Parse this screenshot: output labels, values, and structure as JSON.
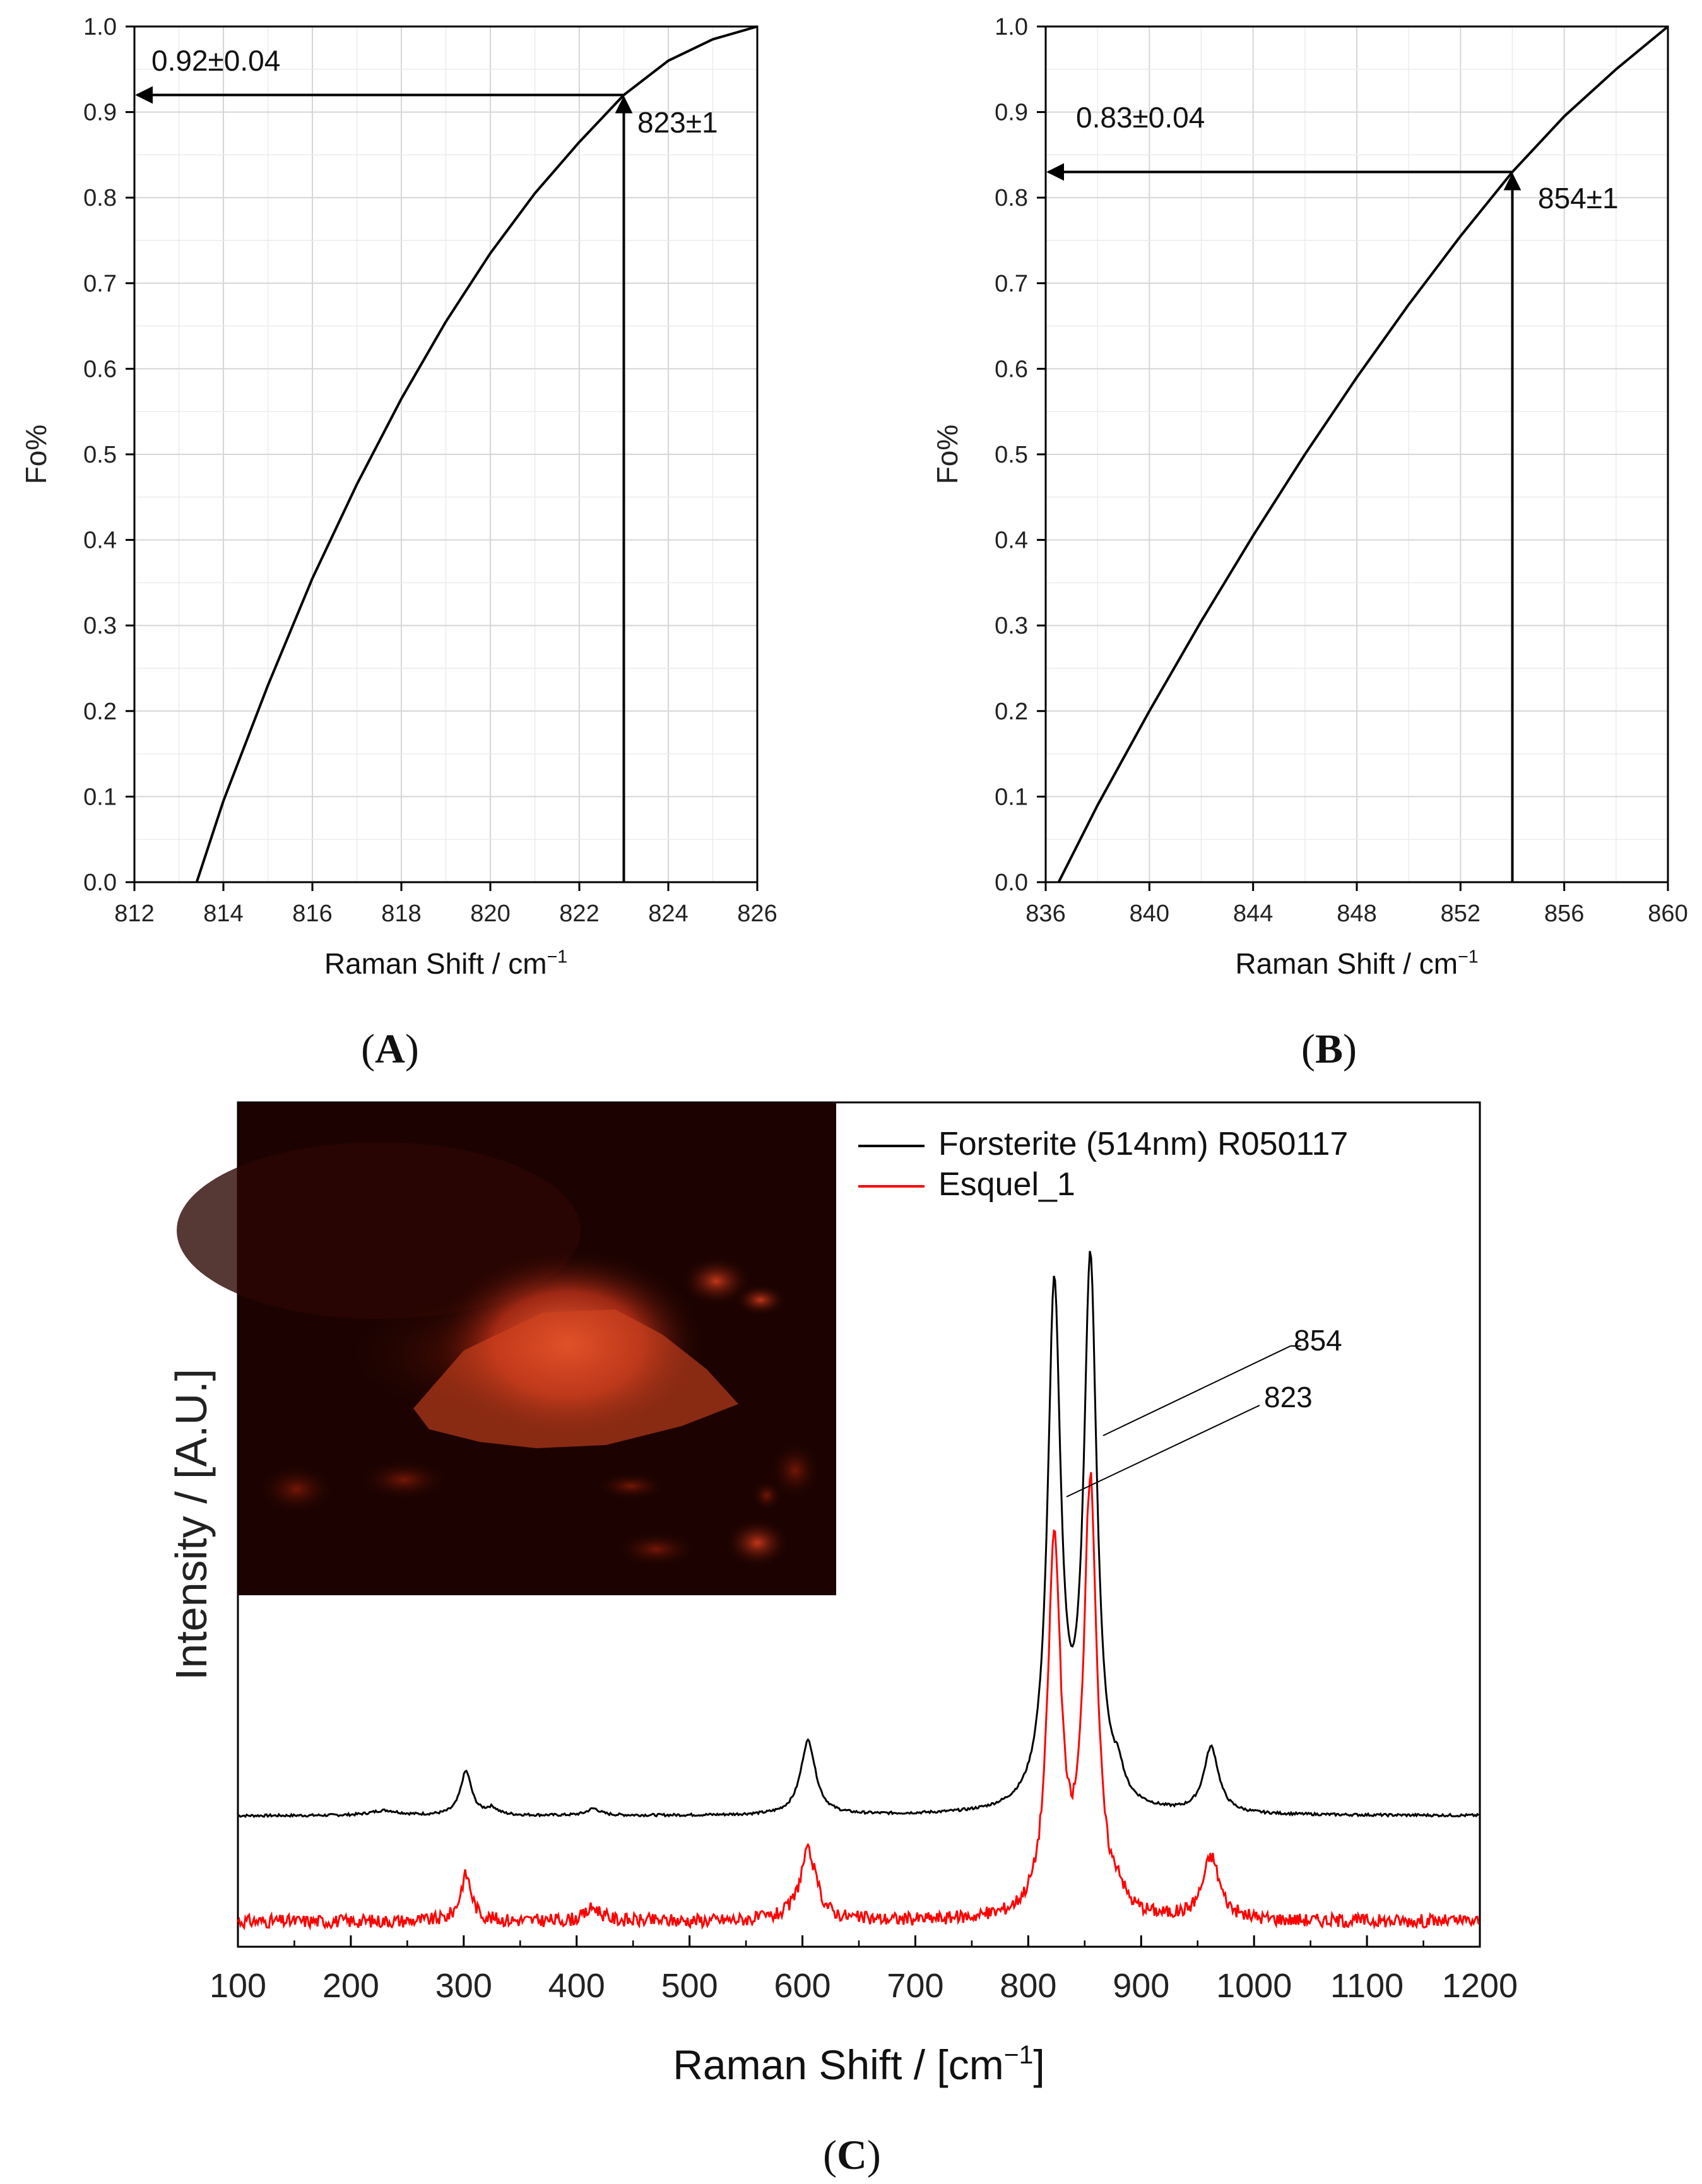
{
  "chart_data": [
    {
      "panel": "A",
      "type": "line",
      "xlabel": "Raman Shift / cm",
      "xlabel_sup": "−1",
      "ylabel": "Fo%",
      "xlim": [
        812,
        826
      ],
      "ylim": [
        0.0,
        1.0
      ],
      "xticks": [
        "812",
        "814",
        "816",
        "818",
        "820",
        "822",
        "824",
        "826"
      ],
      "yticks": [
        "0.0",
        "0.1",
        "0.2",
        "0.3",
        "0.4",
        "0.5",
        "0.6",
        "0.7",
        "0.8",
        "0.9",
        "1.0"
      ],
      "grid": true,
      "series": [
        {
          "x": [
            813.4,
            814,
            815,
            816,
            817,
            818,
            819,
            820,
            821,
            822,
            823,
            824,
            825,
            826
          ],
          "y": [
            0.0,
            0.095,
            0.23,
            0.355,
            0.465,
            0.565,
            0.655,
            0.735,
            0.805,
            0.865,
            0.92,
            0.96,
            0.985,
            1.0
          ],
          "color": "#000000"
        }
      ],
      "annotations": [
        {
          "text": "0.92±0.04",
          "kind": "y-arrow",
          "value": 0.92,
          "from_x": 823
        },
        {
          "text": "823±1",
          "kind": "x-arrow",
          "value": 823,
          "to_y": 0.92
        }
      ]
    },
    {
      "panel": "B",
      "type": "line",
      "xlabel": "Raman Shift / cm",
      "xlabel_sup": "−1",
      "ylabel": "Fo%",
      "xlim": [
        836,
        860
      ],
      "ylim": [
        0.0,
        1.0
      ],
      "xticks": [
        "836",
        "840",
        "844",
        "848",
        "852",
        "856",
        "860"
      ],
      "yticks": [
        "0.0",
        "0.1",
        "0.2",
        "0.3",
        "0.4",
        "0.5",
        "0.6",
        "0.7",
        "0.8",
        "0.9",
        "1.0"
      ],
      "grid": true,
      "series": [
        {
          "x": [
            836.5,
            838,
            840,
            842,
            844,
            846,
            848,
            850,
            852,
            854,
            856,
            858,
            860
          ],
          "y": [
            0.0,
            0.09,
            0.2,
            0.305,
            0.405,
            0.5,
            0.59,
            0.675,
            0.755,
            0.83,
            0.895,
            0.95,
            1.0
          ],
          "color": "#000000"
        }
      ],
      "annotations": [
        {
          "text": "0.83±0.04",
          "kind": "y-arrow",
          "value": 0.83,
          "from_x": 854
        },
        {
          "text": "854±1",
          "kind": "x-arrow",
          "value": 854,
          "to_y": 0.83
        }
      ]
    },
    {
      "panel": "C",
      "type": "line",
      "xlabel": "Raman Shift / [cm",
      "xlabel_sup": "−1",
      "xlabel_end": "]",
      "ylabel": "Intensity / [A.U.]",
      "xlim": [
        100,
        1200
      ],
      "ylim": [
        0,
        1.0
      ],
      "xticks": [
        "100",
        "200",
        "300",
        "400",
        "500",
        "600",
        "700",
        "800",
        "900",
        "1000",
        "1100",
        "1200"
      ],
      "grid": false,
      "legend": "top-right",
      "series": [
        {
          "name": "Forsterite (514nm) R050117",
          "color": "#000000",
          "baseline": 0.155,
          "peaks": [
            {
              "center": 230,
              "height": 0.006,
              "width": 15
            },
            {
              "center": 302,
              "height": 0.052,
              "width": 6
            },
            {
              "center": 325,
              "height": 0.008,
              "width": 6
            },
            {
              "center": 415,
              "height": 0.008,
              "width": 7
            },
            {
              "center": 605,
              "height": 0.088,
              "width": 8
            },
            {
              "center": 823,
              "height": 0.61,
              "width": 7
            },
            {
              "center": 855,
              "height": 0.64,
              "width": 7
            },
            {
              "center": 880,
              "height": 0.025,
              "width": 5
            },
            {
              "center": 962,
              "height": 0.078,
              "width": 8
            }
          ]
        },
        {
          "name": "Esquel_1",
          "color": "#ff0000",
          "baseline": 0.03,
          "peaks": [
            {
              "center": 302,
              "height": 0.055,
              "width": 6
            },
            {
              "center": 415,
              "height": 0.016,
              "width": 8
            },
            {
              "center": 605,
              "height": 0.082,
              "width": 9
            },
            {
              "center": 823,
              "height": 0.44,
              "width": 7
            },
            {
              "center": 855,
              "height": 0.51,
              "width": 7
            },
            {
              "center": 880,
              "height": 0.02,
              "width": 5
            },
            {
              "center": 962,
              "height": 0.074,
              "width": 9
            }
          ]
        }
      ],
      "annotations": [
        {
          "text": "854",
          "x": 854
        },
        {
          "text": "823",
          "x": 823
        }
      ],
      "inset": "microscope photograph of sample (red illumination)"
    }
  ],
  "labels": {
    "a": "A",
    "b": "B",
    "c": "C"
  }
}
